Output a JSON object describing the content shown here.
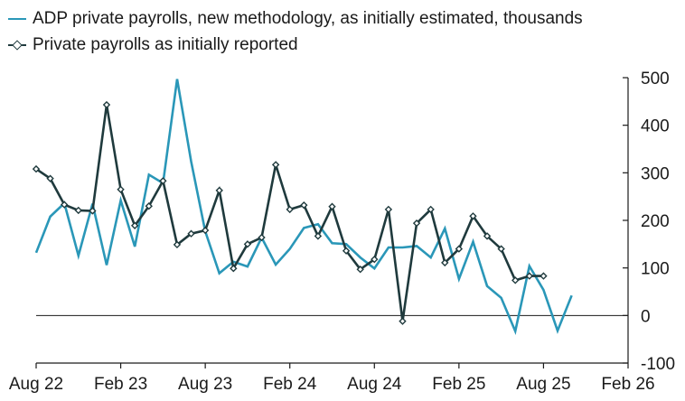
{
  "chart_data": {
    "type": "line",
    "legend_position": "top-left",
    "grid": false,
    "x_ticks": [
      "Aug 22",
      "Feb 23",
      "Aug 23",
      "Feb 24",
      "Aug 24",
      "Feb 25",
      "Aug 25",
      "Feb 26"
    ],
    "y_ticks": [
      "500",
      "400",
      "300",
      "200",
      "100",
      "0",
      "-100"
    ],
    "xlim": [
      "2022-08",
      "2026-02"
    ],
    "ylim": [
      -100,
      500
    ],
    "y_axis_side": "right",
    "zero_line": true,
    "series": [
      {
        "name": "ADP private payrolls, new methodology, as initially estimated, thousands",
        "color": "#2a97b8",
        "marker": "none",
        "points": [
          [
            "2022-08",
            132
          ],
          [
            "2022-09",
            208
          ],
          [
            "2022-10",
            236
          ],
          [
            "2022-11",
            126
          ],
          [
            "2022-12",
            235
          ],
          [
            "2023-01",
            106
          ],
          [
            "2023-02",
            242
          ],
          [
            "2023-03",
            145
          ],
          [
            "2023-04",
            296
          ],
          [
            "2023-05",
            278
          ],
          [
            "2023-06",
            497
          ],
          [
            "2023-07",
            324
          ],
          [
            "2023-08",
            177
          ],
          [
            "2023-09",
            89
          ],
          [
            "2023-10",
            113
          ],
          [
            "2023-11",
            103
          ],
          [
            "2023-12",
            164
          ],
          [
            "2024-01",
            107
          ],
          [
            "2024-02",
            140
          ],
          [
            "2024-03",
            184
          ],
          [
            "2024-04",
            192
          ],
          [
            "2024-05",
            152
          ],
          [
            "2024-06",
            150
          ],
          [
            "2024-07",
            122
          ],
          [
            "2024-08",
            99
          ],
          [
            "2024-09",
            143
          ],
          [
            "2024-10",
            143
          ],
          [
            "2024-11",
            146
          ],
          [
            "2024-12",
            122
          ],
          [
            "2025-01",
            183
          ],
          [
            "2025-02",
            77
          ],
          [
            "2025-03",
            155
          ],
          [
            "2025-04",
            62
          ],
          [
            "2025-05",
            37
          ],
          [
            "2025-06",
            -33
          ],
          [
            "2025-07",
            104
          ],
          [
            "2025-08",
            54
          ],
          [
            "2025-09",
            -32
          ],
          [
            "2025-10",
            42
          ]
        ]
      },
      {
        "name": "Private payrolls as initially reported",
        "color": "#1f3a3d",
        "marker": "diamond",
        "points": [
          [
            "2022-08",
            308
          ],
          [
            "2022-09",
            288
          ],
          [
            "2022-10",
            233
          ],
          [
            "2022-11",
            221
          ],
          [
            "2022-12",
            220
          ],
          [
            "2023-01",
            443
          ],
          [
            "2023-02",
            265
          ],
          [
            "2023-03",
            189
          ],
          [
            "2023-04",
            230
          ],
          [
            "2023-05",
            283
          ],
          [
            "2023-06",
            149
          ],
          [
            "2023-07",
            172
          ],
          [
            "2023-08",
            179
          ],
          [
            "2023-09",
            263
          ],
          [
            "2023-10",
            99
          ],
          [
            "2023-11",
            150
          ],
          [
            "2023-12",
            164
          ],
          [
            "2024-01",
            317
          ],
          [
            "2024-02",
            223
          ],
          [
            "2024-03",
            232
          ],
          [
            "2024-04",
            167
          ],
          [
            "2024-05",
            229
          ],
          [
            "2024-06",
            136
          ],
          [
            "2024-07",
            97
          ],
          [
            "2024-08",
            118
          ],
          [
            "2024-09",
            223
          ],
          [
            "2024-10",
            -12
          ],
          [
            "2024-11",
            194
          ],
          [
            "2024-12",
            223
          ],
          [
            "2025-01",
            111
          ],
          [
            "2025-02",
            140
          ],
          [
            "2025-03",
            209
          ],
          [
            "2025-04",
            167
          ],
          [
            "2025-05",
            140
          ],
          [
            "2025-06",
            74
          ],
          [
            "2025-07",
            83
          ],
          [
            "2025-08",
            83
          ]
        ]
      }
    ]
  }
}
